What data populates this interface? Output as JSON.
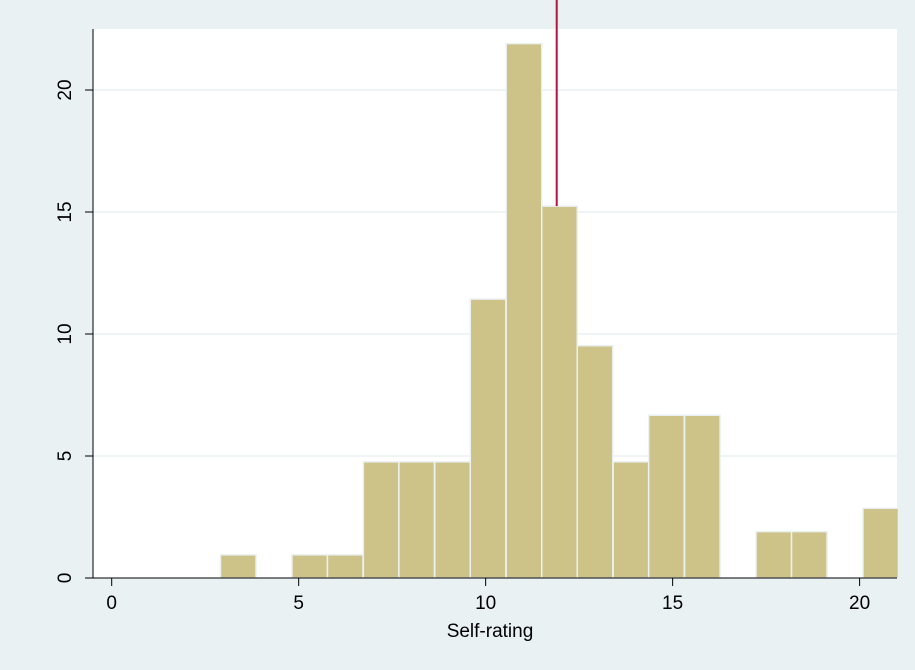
{
  "chart_data": {
    "type": "bar",
    "title": "",
    "xlabel": "Self-rating",
    "ylabel": "",
    "xlim": [
      -0.5,
      21
    ],
    "ylim": [
      0,
      22.5
    ],
    "x_ticks": [
      "0",
      "5",
      "10",
      "15",
      "20"
    ],
    "y_ticks": [
      "0",
      "5",
      "10",
      "15",
      "20"
    ],
    "grid": true,
    "bin_width": 0.95,
    "bins": [
      {
        "start": 2.91,
        "value": 0.95
      },
      {
        "start": 4.82,
        "value": 0.95
      },
      {
        "start": 5.77,
        "value": 0.95
      },
      {
        "start": 6.73,
        "value": 4.76
      },
      {
        "start": 7.68,
        "value": 4.76
      },
      {
        "start": 8.64,
        "value": 4.76
      },
      {
        "start": 9.59,
        "value": 11.43
      },
      {
        "start": 10.55,
        "value": 21.9
      },
      {
        "start": 11.5,
        "value": 15.24
      },
      {
        "start": 12.45,
        "value": 9.52
      },
      {
        "start": 13.41,
        "value": 4.76
      },
      {
        "start": 14.36,
        "value": 6.67
      },
      {
        "start": 15.32,
        "value": 6.67
      },
      {
        "start": 17.23,
        "value": 1.9
      },
      {
        "start": 18.18,
        "value": 1.9
      },
      {
        "start": 20.09,
        "value": 2.86
      }
    ],
    "reference_line": {
      "x": 11.9,
      "color": "#b5123e"
    },
    "bar_color": "#cdc287",
    "background_color": "#eaf1f3"
  }
}
